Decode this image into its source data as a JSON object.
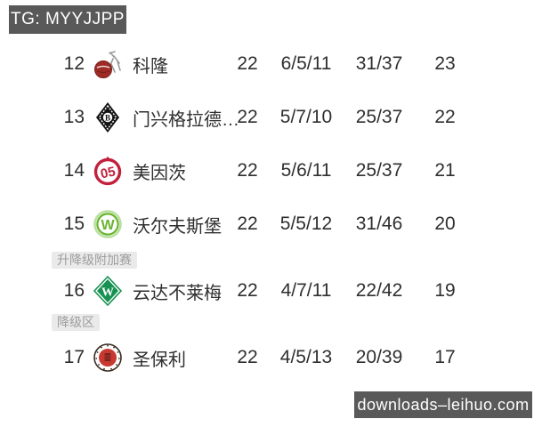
{
  "watermark_top": {
    "label": "TG: MYYJJPP"
  },
  "watermark_bottom": {
    "label": "downloads–leihuo.com"
  },
  "colors": {
    "watermark_bg": "#595959",
    "watermark_fg": "#ffffff",
    "row_text": "#2f2f2f",
    "section_pill_bg": "#eaeaea",
    "section_pill_fg": "#9d9d9d",
    "koln_red": "#9e2b25",
    "gladbach_black": "#141414",
    "mainz_red": "#c2203c",
    "wolfsburg_green": "#69b42e",
    "bremen_green": "#169152",
    "stpauli_red": "#c8392f"
  },
  "table": {
    "columns": [
      "position",
      "logo",
      "team",
      "played",
      "win_draw_loss",
      "goals_for_against",
      "points"
    ],
    "rows": [
      {
        "pos": "12",
        "logo": "koln-badge-icon",
        "team": "科隆",
        "played": "22",
        "wdl": "6/5/11",
        "goals": "31/37",
        "points": "23"
      },
      {
        "pos": "13",
        "logo": "gladbach-badge-icon",
        "team": "门兴格拉德…",
        "played": "22",
        "wdl": "5/7/10",
        "goals": "25/37",
        "points": "22"
      },
      {
        "pos": "14",
        "logo": "mainz-badge-icon",
        "team": "美因茨",
        "played": "22",
        "wdl": "5/6/11",
        "goals": "25/37",
        "points": "21"
      },
      {
        "pos": "15",
        "logo": "wolfsburg-badge-icon",
        "team": "沃尔夫斯堡",
        "played": "22",
        "wdl": "5/5/12",
        "goals": "31/46",
        "points": "20"
      },
      {
        "pos": "16",
        "logo": "bremen-badge-icon",
        "team": "云达不莱梅",
        "played": "22",
        "wdl": "4/7/11",
        "goals": "22/42",
        "points": "19",
        "section_label": "升降级附加赛",
        "short": true
      },
      {
        "pos": "17",
        "logo": "stpauli-badge-icon",
        "team": "圣保利",
        "played": "22",
        "wdl": "4/5/13",
        "goals": "20/39",
        "points": "17",
        "section_label": "降级区"
      }
    ]
  }
}
